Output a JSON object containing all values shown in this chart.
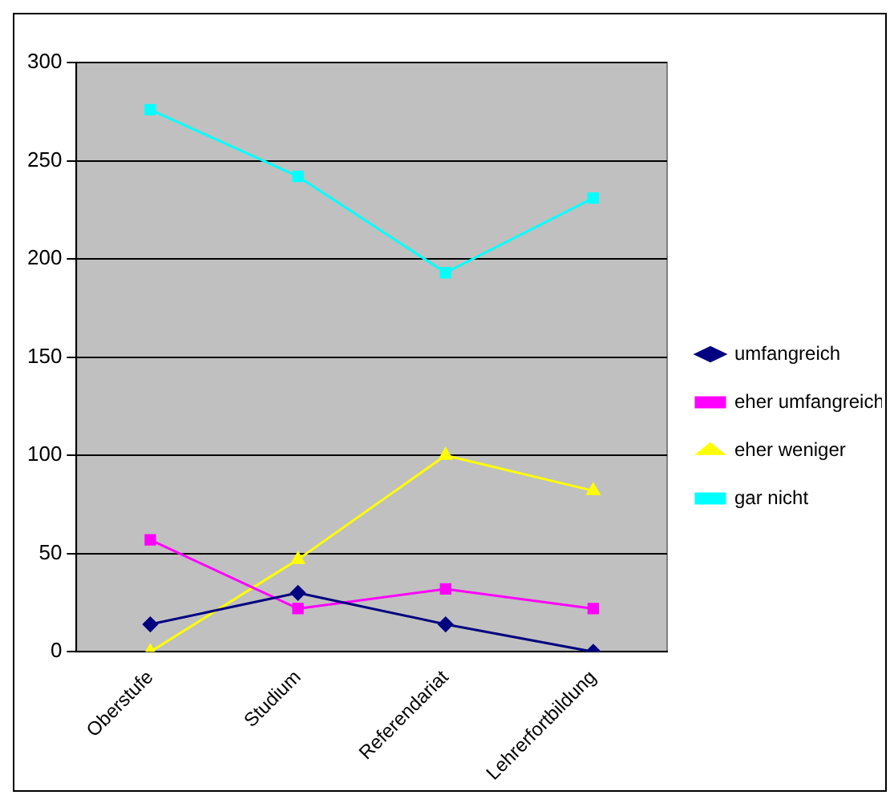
{
  "chart_data": {
    "type": "line",
    "categories": [
      "Oberstufe",
      "Studium",
      "Referendariat",
      "Lehrerfortbildung"
    ],
    "series": [
      {
        "name": "umfangreich",
        "color": "#000080",
        "marker": "diamond",
        "values": [
          14,
          30,
          14,
          0
        ]
      },
      {
        "name": "eher umfangreich",
        "color": "#ff00ff",
        "marker": "square",
        "values": [
          57,
          22,
          32,
          22
        ]
      },
      {
        "name": "eher weniger",
        "color": "#ffff00",
        "marker": "triangle",
        "values": [
          0,
          47,
          100,
          82
        ]
      },
      {
        "name": "gar nicht",
        "color": "#00ffff",
        "marker": "square",
        "values": [
          276,
          242,
          193,
          231
        ]
      }
    ],
    "ylim": [
      0,
      300
    ],
    "yticks": [
      0,
      50,
      100,
      150,
      200,
      250,
      300
    ],
    "grid": "y",
    "legend": "right",
    "line_style": "solid"
  }
}
